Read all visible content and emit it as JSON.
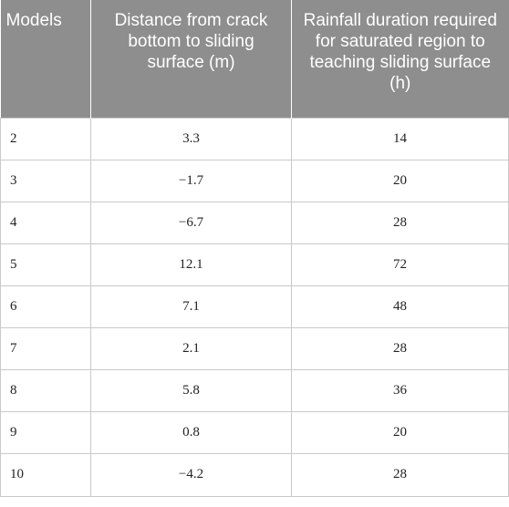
{
  "table": {
    "headers": [
      "Models",
      "Distance from crack bottom to sliding surface (m)",
      "Rainfall duration required for saturated region to teaching sliding surface (h)"
    ],
    "rows": [
      [
        "2",
        "3.3",
        "14"
      ],
      [
        "3",
        "−1.7",
        "20"
      ],
      [
        "4",
        "−6.7",
        "28"
      ],
      [
        "5",
        "12.1",
        "72"
      ],
      [
        "6",
        "7.1",
        "48"
      ],
      [
        "7",
        "2.1",
        "28"
      ],
      [
        "8",
        "5.8",
        "36"
      ],
      [
        "9",
        "0.8",
        "20"
      ],
      [
        "10",
        "−4.2",
        "28"
      ]
    ]
  }
}
